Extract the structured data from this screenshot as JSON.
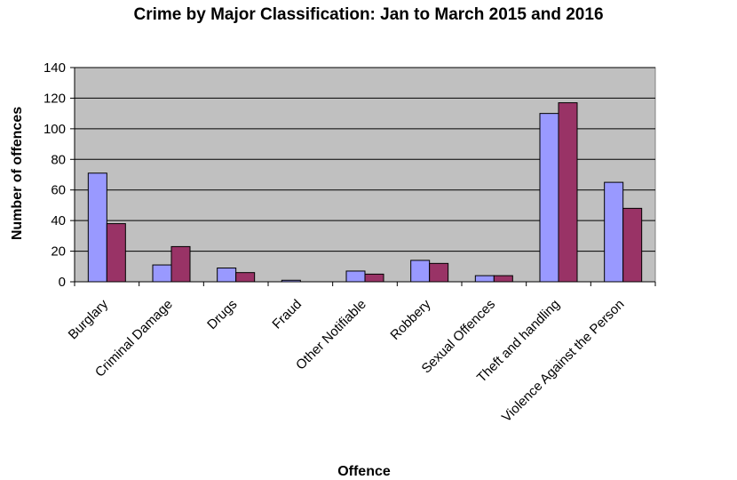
{
  "chart_data": {
    "type": "bar",
    "title": "Crime by Major Classification: Jan to March 2015 and 2016",
    "xlabel": "Offence",
    "ylabel": "Number of offences",
    "ylim": [
      0,
      140
    ],
    "yticks": [
      0,
      20,
      40,
      60,
      80,
      100,
      120,
      140
    ],
    "grid": true,
    "legend": "none",
    "categories": [
      "Burglary",
      "Criminal Damage",
      "Drugs",
      "Fraud",
      "Other Notifiable",
      "Robbery",
      "Sexual Offences",
      "Theft and handling",
      "Violence Against the Person"
    ],
    "series": [
      {
        "values": [
          71,
          11,
          9,
          1,
          7,
          14,
          4,
          110,
          65
        ],
        "color": "#9999ff"
      },
      {
        "values": [
          38,
          23,
          6,
          0,
          5,
          12,
          4,
          117,
          48
        ],
        "color": "#993366"
      }
    ],
    "plot_background": "#c0c0c0"
  }
}
